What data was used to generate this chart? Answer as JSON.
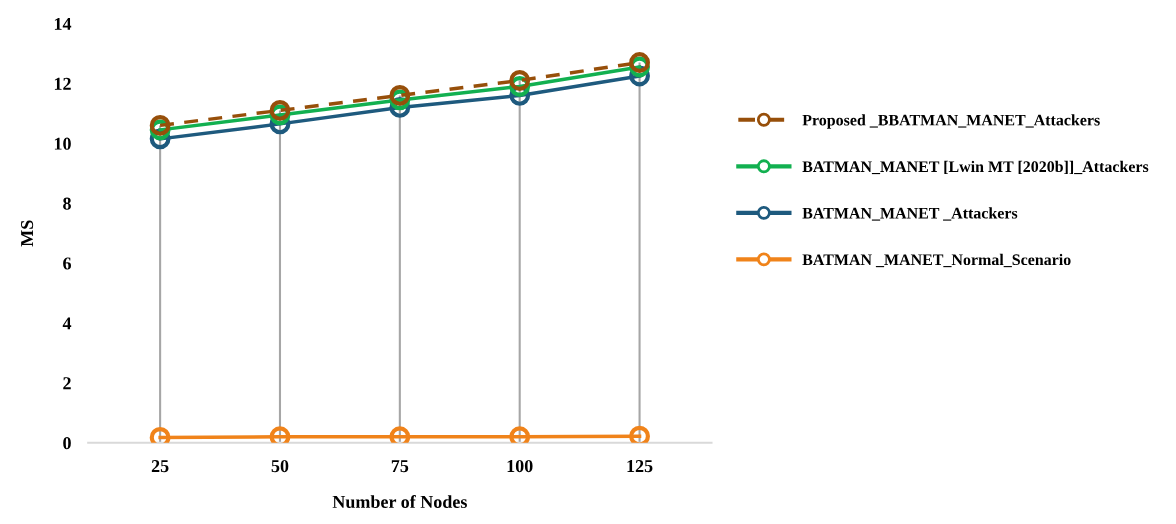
{
  "chart_data": {
    "type": "line",
    "xlabel": "Number of Nodes",
    "ylabel": "MS",
    "categories": [
      "25",
      "50",
      "75",
      "100",
      "125"
    ],
    "series": [
      {
        "name": "Proposed _BBATMAN_MANET_Attackers",
        "color": "#974f0a",
        "line_style": "dashed",
        "values": [
          10.6,
          11.1,
          11.6,
          12.1,
          12.7
        ]
      },
      {
        "name": "BATMAN_MANET [Lwin MT [2020b]]_Attackers",
        "color": "#12b050",
        "values": [
          10.45,
          10.95,
          11.45,
          11.9,
          12.55
        ]
      },
      {
        "name": "BATMAN_MANET _Attackers",
        "color": "#1e5a7e",
        "values": [
          10.15,
          10.65,
          11.2,
          11.6,
          12.25
        ]
      },
      {
        "name": "BATMAN _MANET_Normal_Scenario",
        "color": "#f0831a",
        "values": [
          0.18,
          0.2,
          0.2,
          0.2,
          0.22
        ]
      }
    ],
    "ylim": [
      0,
      14
    ],
    "yticks": [
      0,
      2,
      4,
      6,
      8,
      10,
      12,
      14
    ],
    "marker": "circle",
    "line_style": "solid",
    "grid": "x",
    "legend": "right"
  }
}
